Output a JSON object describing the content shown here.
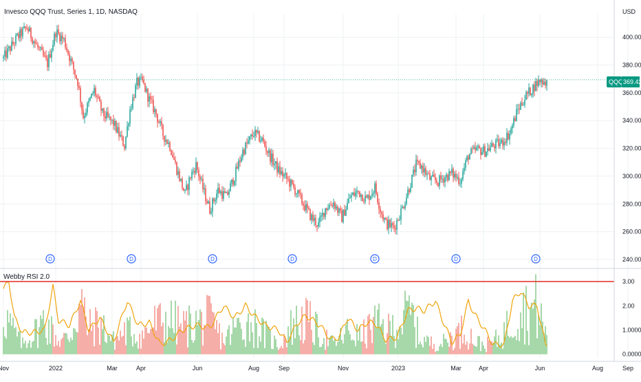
{
  "header": {
    "title": "Invesco QQQ Trust, Series 1, 1D, NASDAQ",
    "currency": "USD"
  },
  "price_badge": {
    "symbol": "QQQ",
    "value": "369.42"
  },
  "dividend_marker": "D",
  "indicator": {
    "title": "Webby RSI 2.0"
  },
  "colors": {
    "up": "#26a69a",
    "down": "#ef5350",
    "rsi_line": "#f0a30a",
    "bar_up": "#81c784",
    "bar_down": "#f28b82",
    "threshold": "#e53935",
    "grid": "#eef0f3",
    "badge": "#089981",
    "dividend": "#2962ff"
  },
  "chart_data": [
    {
      "type": "candlestick",
      "title": "Invesco QQQ Trust, Series 1, 1D, NASDAQ",
      "ylim": [
        236,
        412
      ],
      "y_ticks": [
        "400.00",
        "380.00",
        "360.00",
        "340.00",
        "320.00",
        "300.00",
        "280.00",
        "260.00",
        "240.00"
      ],
      "y_tick_values": [
        400,
        380,
        360,
        340,
        320,
        300,
        280,
        260,
        240
      ],
      "x_ticks": [
        "Nov",
        "2022",
        "Mar",
        "Apr",
        "Jun",
        "Aug",
        "Sep",
        "Nov",
        "2023",
        "Mar",
        "Apr",
        "Jun",
        "Aug",
        "Sep"
      ],
      "x_tick_index": [
        0,
        38,
        79,
        100,
        141,
        182,
        204,
        247,
        287,
        329,
        349,
        390,
        432,
        454
      ],
      "last_price": 369.42,
      "dividends_index": [
        34,
        93,
        152,
        210,
        270,
        329,
        387
      ],
      "price_path": [
        [
          0,
          385
        ],
        [
          10,
          400
        ],
        [
          17,
          407
        ],
        [
          24,
          394
        ],
        [
          32,
          381
        ],
        [
          38,
          404
        ],
        [
          44,
          398
        ],
        [
          54,
          368
        ],
        [
          58,
          343
        ],
        [
          66,
          362
        ],
        [
          72,
          345
        ],
        [
          80,
          338
        ],
        [
          88,
          322
        ],
        [
          92,
          348
        ],
        [
          97,
          367
        ],
        [
          101,
          368
        ],
        [
          106,
          355
        ],
        [
          111,
          345
        ],
        [
          116,
          330
        ],
        [
          121,
          322
        ],
        [
          126,
          305
        ],
        [
          132,
          287
        ],
        [
          136,
          300
        ],
        [
          140,
          308
        ],
        [
          145,
          291
        ],
        [
          150,
          276
        ],
        [
          156,
          290
        ],
        [
          162,
          285
        ],
        [
          168,
          300
        ],
        [
          174,
          318
        ],
        [
          182,
          331
        ],
        [
          188,
          326
        ],
        [
          194,
          314
        ],
        [
          200,
          304
        ],
        [
          206,
          298
        ],
        [
          212,
          290
        ],
        [
          218,
          280
        ],
        [
          224,
          270
        ],
        [
          229,
          265
        ],
        [
          234,
          277
        ],
        [
          240,
          281
        ],
        [
          246,
          270
        ],
        [
          252,
          285
        ],
        [
          258,
          289
        ],
        [
          264,
          283
        ],
        [
          270,
          292
        ],
        [
          274,
          276
        ],
        [
          278,
          266
        ],
        [
          284,
          263
        ],
        [
          290,
          277
        ],
        [
          296,
          295
        ],
        [
          300,
          308
        ],
        [
          304,
          307
        ],
        [
          310,
          298
        ],
        [
          316,
          296
        ],
        [
          320,
          299
        ],
        [
          326,
          302
        ],
        [
          332,
          297
        ],
        [
          338,
          315
        ],
        [
          344,
          319
        ],
        [
          350,
          318
        ],
        [
          356,
          322
        ],
        [
          362,
          324
        ],
        [
          368,
          331
        ],
        [
          374,
          348
        ],
        [
          380,
          358
        ],
        [
          386,
          365
        ],
        [
          390,
          369
        ],
        [
          394,
          368
        ]
      ]
    },
    {
      "type": "bar_line",
      "title": "Webby RSI 2.0",
      "ylim": [
        -0.15,
        3.4
      ],
      "y_ticks": [
        "3.00",
        "2.00",
        "1.0000",
        "0.0000"
      ],
      "y_tick_values": [
        3,
        2,
        1,
        0
      ],
      "threshold": 3.0,
      "bar_profile": [
        [
          0,
          2.5
        ],
        [
          6,
          1.5
        ],
        [
          14,
          0.6
        ],
        [
          22,
          1.2
        ],
        [
          30,
          2.0
        ],
        [
          40,
          0.8
        ],
        [
          48,
          1.0
        ],
        [
          56,
          3.0
        ],
        [
          62,
          1.5
        ],
        [
          70,
          1.8
        ],
        [
          80,
          0.8
        ],
        [
          90,
          1.4
        ],
        [
          100,
          1.0
        ],
        [
          110,
          1.8
        ],
        [
          120,
          2.0
        ],
        [
          130,
          1.6
        ],
        [
          140,
          1.8
        ],
        [
          150,
          2.0
        ],
        [
          160,
          0.8
        ],
        [
          170,
          1.6
        ],
        [
          180,
          1.8
        ],
        [
          190,
          1.2
        ],
        [
          200,
          0.5
        ],
        [
          210,
          1.7
        ],
        [
          220,
          2.0
        ],
        [
          230,
          1.2
        ],
        [
          240,
          0.6
        ],
        [
          250,
          1.3
        ],
        [
          260,
          1.0
        ],
        [
          270,
          1.8
        ],
        [
          280,
          1.4
        ],
        [
          290,
          2.0
        ],
        [
          296,
          2.5
        ],
        [
          302,
          1.0
        ],
        [
          312,
          0.6
        ],
        [
          320,
          0.7
        ],
        [
          330,
          1.2
        ],
        [
          336,
          1.5
        ],
        [
          342,
          0.8
        ],
        [
          350,
          0.5
        ],
        [
          360,
          0.9
        ],
        [
          370,
          2.0
        ],
        [
          376,
          2.8
        ],
        [
          382,
          2.4
        ],
        [
          388,
          2.8
        ],
        [
          394,
          1.2
        ]
      ],
      "line_profile": [
        [
          0,
          2.7
        ],
        [
          4,
          3.0
        ],
        [
          8,
          1.5
        ],
        [
          14,
          0.9
        ],
        [
          22,
          0.9
        ],
        [
          30,
          1.0
        ],
        [
          36,
          2.8
        ],
        [
          40,
          1.4
        ],
        [
          48,
          1.2
        ],
        [
          56,
          2.2
        ],
        [
          62,
          1.0
        ],
        [
          70,
          1.5
        ],
        [
          80,
          0.5
        ],
        [
          90,
          2.2
        ],
        [
          98,
          1.2
        ],
        [
          106,
          1.3
        ],
        [
          114,
          0.4
        ],
        [
          122,
          0.6
        ],
        [
          130,
          1.0
        ],
        [
          140,
          1.2
        ],
        [
          150,
          1.1
        ],
        [
          160,
          2.0
        ],
        [
          168,
          1.5
        ],
        [
          176,
          2.0
        ],
        [
          182,
          1.6
        ],
        [
          190,
          1.2
        ],
        [
          200,
          1.0
        ],
        [
          206,
          0.5
        ],
        [
          214,
          1.3
        ],
        [
          220,
          1.6
        ],
        [
          230,
          1.2
        ],
        [
          238,
          0.6
        ],
        [
          244,
          0.7
        ],
        [
          250,
          1.5
        ],
        [
          258,
          1.0
        ],
        [
          264,
          1.3
        ],
        [
          270,
          1.3
        ],
        [
          278,
          0.6
        ],
        [
          286,
          0.7
        ],
        [
          294,
          1.8
        ],
        [
          300,
          1.9
        ],
        [
          306,
          1.8
        ],
        [
          314,
          2.2
        ],
        [
          320,
          1.3
        ],
        [
          326,
          0.5
        ],
        [
          332,
          0.8
        ],
        [
          338,
          2.2
        ],
        [
          342,
          1.7
        ],
        [
          350,
          1.0
        ],
        [
          356,
          0.4
        ],
        [
          364,
          0.4
        ],
        [
          370,
          2.2
        ],
        [
          376,
          2.6
        ],
        [
          382,
          2.0
        ],
        [
          388,
          2.0
        ],
        [
          394,
          0.4
        ]
      ]
    }
  ]
}
